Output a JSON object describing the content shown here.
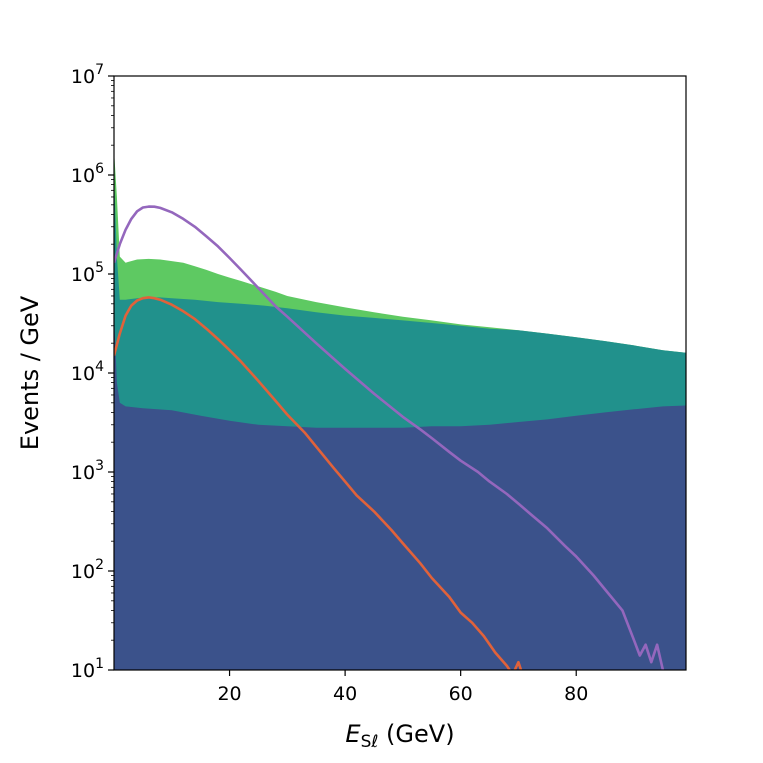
{
  "chart_data": {
    "type": "area",
    "xlabel": {
      "symbol": "E",
      "subscript": "Sℓ",
      "unit": " (GeV)"
    },
    "ylabel": "Events / GeV",
    "xlim": [
      0,
      99
    ],
    "ylim": [
      10,
      10000000
    ],
    "yscale": "log",
    "grid": false,
    "x_ticks": [
      {
        "value": 20,
        "label": "20"
      },
      {
        "value": 40,
        "label": "40"
      },
      {
        "value": 60,
        "label": "60"
      },
      {
        "value": 80,
        "label": "80"
      }
    ],
    "y_ticks": [
      {
        "value": 10,
        "base": "10",
        "exp": "1"
      },
      {
        "value": 100,
        "base": "10",
        "exp": "2"
      },
      {
        "value": 1000,
        "base": "10",
        "exp": "3"
      },
      {
        "value": 10000,
        "base": "10",
        "exp": "4"
      },
      {
        "value": 100000,
        "base": "10",
        "exp": "5"
      },
      {
        "value": 1000000,
        "base": "10",
        "exp": "6"
      },
      {
        "value": 10000000,
        "base": "10",
        "exp": "7"
      }
    ],
    "stacked_areas": [
      {
        "color": "#5ec962",
        "points": [
          [
            0,
            1800000
          ],
          [
            0.5,
            600000
          ],
          [
            1,
            150000
          ],
          [
            2,
            130000
          ],
          [
            4,
            140000
          ],
          [
            6,
            142000
          ],
          [
            8,
            140000
          ],
          [
            10,
            135000
          ],
          [
            12,
            130000
          ],
          [
            14,
            120000
          ],
          [
            16,
            110000
          ],
          [
            18,
            100000
          ],
          [
            20,
            92000
          ],
          [
            22,
            85000
          ],
          [
            25,
            75000
          ],
          [
            28,
            66000
          ],
          [
            30,
            60000
          ],
          [
            35,
            52000
          ],
          [
            40,
            46000
          ],
          [
            45,
            41000
          ],
          [
            50,
            37000
          ],
          [
            55,
            34000
          ],
          [
            60,
            31000
          ],
          [
            65,
            29000
          ],
          [
            70,
            27000
          ],
          [
            75,
            25000
          ],
          [
            80,
            23000
          ],
          [
            85,
            21000
          ],
          [
            90,
            19000
          ],
          [
            95,
            17000
          ],
          [
            99,
            16000
          ]
        ]
      },
      {
        "color": "#21918c",
        "points": [
          [
            0,
            1000000
          ],
          [
            0.5,
            150000
          ],
          [
            1,
            55000
          ],
          [
            2,
            55000
          ],
          [
            4,
            57000
          ],
          [
            6,
            58000
          ],
          [
            8,
            58000
          ],
          [
            10,
            57000
          ],
          [
            14,
            55000
          ],
          [
            18,
            52000
          ],
          [
            22,
            50000
          ],
          [
            26,
            48000
          ],
          [
            30,
            45000
          ],
          [
            35,
            41000
          ],
          [
            40,
            38000
          ],
          [
            45,
            36000
          ],
          [
            50,
            34000
          ],
          [
            55,
            32000
          ],
          [
            60,
            30000
          ],
          [
            65,
            28000
          ],
          [
            70,
            27000
          ],
          [
            75,
            25000
          ],
          [
            80,
            23000
          ],
          [
            85,
            21000
          ],
          [
            90,
            19000
          ],
          [
            95,
            17000
          ],
          [
            99,
            16000
          ]
        ]
      },
      {
        "color": "#3b528b",
        "points": [
          [
            0,
            40000
          ],
          [
            0.5,
            8000
          ],
          [
            1,
            5000
          ],
          [
            2,
            4600
          ],
          [
            5,
            4400
          ],
          [
            10,
            4200
          ],
          [
            15,
            3700
          ],
          [
            20,
            3300
          ],
          [
            25,
            3000
          ],
          [
            30,
            2900
          ],
          [
            35,
            2800
          ],
          [
            40,
            2800
          ],
          [
            45,
            2800
          ],
          [
            50,
            2800
          ],
          [
            55,
            2900
          ],
          [
            60,
            2900
          ],
          [
            65,
            3000
          ],
          [
            70,
            3200
          ],
          [
            75,
            3400
          ],
          [
            80,
            3700
          ],
          [
            85,
            4000
          ],
          [
            90,
            4300
          ],
          [
            95,
            4600
          ],
          [
            99,
            4700
          ]
        ]
      }
    ],
    "series": [
      {
        "color": "#9467bd",
        "points": [
          [
            0,
            130000
          ],
          [
            1,
            200000
          ],
          [
            2,
            280000
          ],
          [
            3,
            360000
          ],
          [
            4,
            430000
          ],
          [
            5,
            470000
          ],
          [
            6,
            480000
          ],
          [
            7,
            478000
          ],
          [
            8,
            465000
          ],
          [
            10,
            420000
          ],
          [
            12,
            360000
          ],
          [
            14,
            300000
          ],
          [
            16,
            240000
          ],
          [
            18,
            190000
          ],
          [
            20,
            145000
          ],
          [
            22,
            110000
          ],
          [
            25,
            72000
          ],
          [
            28,
            47000
          ],
          [
            30,
            37000
          ],
          [
            35,
            20000
          ],
          [
            40,
            11000
          ],
          [
            45,
            6200
          ],
          [
            50,
            3600
          ],
          [
            53,
            2700
          ],
          [
            55,
            2200
          ],
          [
            58,
            1600
          ],
          [
            60,
            1300
          ],
          [
            63,
            1000
          ],
          [
            65,
            800
          ],
          [
            68,
            600
          ],
          [
            70,
            480
          ],
          [
            72,
            380
          ],
          [
            75,
            270
          ],
          [
            78,
            180
          ],
          [
            80,
            140
          ],
          [
            83,
            90
          ],
          [
            85,
            65
          ],
          [
            88,
            40
          ],
          [
            90,
            20
          ],
          [
            91,
            14
          ],
          [
            92,
            18
          ],
          [
            93,
            12
          ],
          [
            94,
            18
          ],
          [
            95,
            10
          ]
        ]
      },
      {
        "color": "#e1623a",
        "points": [
          [
            0,
            15000
          ],
          [
            1,
            25000
          ],
          [
            2,
            38000
          ],
          [
            3,
            48000
          ],
          [
            4,
            54000
          ],
          [
            5,
            57000
          ],
          [
            6,
            58000
          ],
          [
            7,
            57000
          ],
          [
            8,
            55000
          ],
          [
            10,
            49000
          ],
          [
            12,
            42000
          ],
          [
            14,
            35000
          ],
          [
            16,
            28000
          ],
          [
            18,
            22000
          ],
          [
            20,
            17000
          ],
          [
            22,
            13000
          ],
          [
            25,
            8300
          ],
          [
            28,
            5200
          ],
          [
            30,
            3800
          ],
          [
            33,
            2500
          ],
          [
            35,
            1800
          ],
          [
            38,
            1100
          ],
          [
            40,
            800
          ],
          [
            42,
            580
          ],
          [
            45,
            400
          ],
          [
            48,
            260
          ],
          [
            50,
            190
          ],
          [
            53,
            120
          ],
          [
            55,
            85
          ],
          [
            58,
            55
          ],
          [
            60,
            38
          ],
          [
            62,
            30
          ],
          [
            64,
            22
          ],
          [
            66,
            15
          ],
          [
            68,
            11
          ],
          [
            69,
            9
          ],
          [
            70,
            12
          ],
          [
            71,
            8
          ]
        ]
      }
    ]
  }
}
